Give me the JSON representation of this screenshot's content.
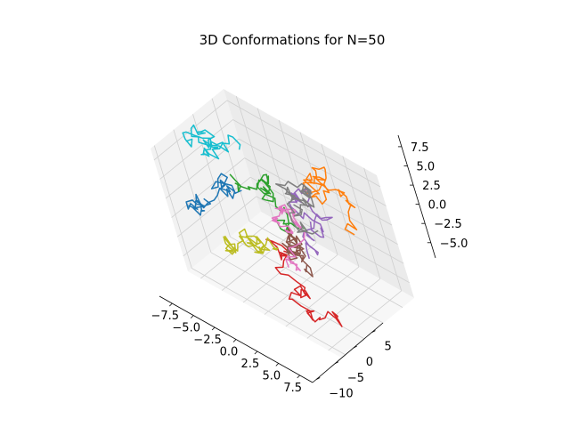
{
  "chart_data": {
    "type": "line",
    "projection": "3d",
    "title": "3D Conformations for N=50",
    "xlabel": "",
    "ylabel": "",
    "zlabel": "",
    "grid": true,
    "legend": "none",
    "xlim": [
      -9,
      9
    ],
    "ylim": [
      -11,
      8
    ],
    "zlim": [
      -7,
      9
    ],
    "x_ticks": [
      -7.5,
      -5.0,
      -2.5,
      0.0,
      2.5,
      5.0,
      7.5
    ],
    "x_tick_labels": [
      "−7.5",
      "−5.0",
      "−2.5",
      "0.0",
      "2.5",
      "5.0",
      "7.5"
    ],
    "y_ticks": [
      -10,
      -5,
      0,
      5
    ],
    "y_tick_labels": [
      "−10",
      "−5",
      "0",
      "5"
    ],
    "z_ticks": [
      -5.0,
      -2.5,
      0.0,
      2.5,
      5.0,
      7.5
    ],
    "z_tick_labels": [
      "−5.0",
      "−2.5",
      "0.0",
      "2.5",
      "5.0",
      "7.5"
    ],
    "series": [
      {
        "color": "#1f77b4",
        "segments": 50
      },
      {
        "color": "#ff7f0e",
        "segments": 50
      },
      {
        "color": "#2ca02c",
        "segments": 50
      },
      {
        "color": "#d62728",
        "segments": 50
      },
      {
        "color": "#9467bd",
        "segments": 50
      },
      {
        "color": "#8c564b",
        "segments": 50
      },
      {
        "color": "#e377c2",
        "segments": 50
      },
      {
        "color": "#7f7f7f",
        "segments": 50
      },
      {
        "color": "#bcbd22",
        "segments": 50
      },
      {
        "color": "#17becf",
        "segments": 50
      }
    ]
  }
}
